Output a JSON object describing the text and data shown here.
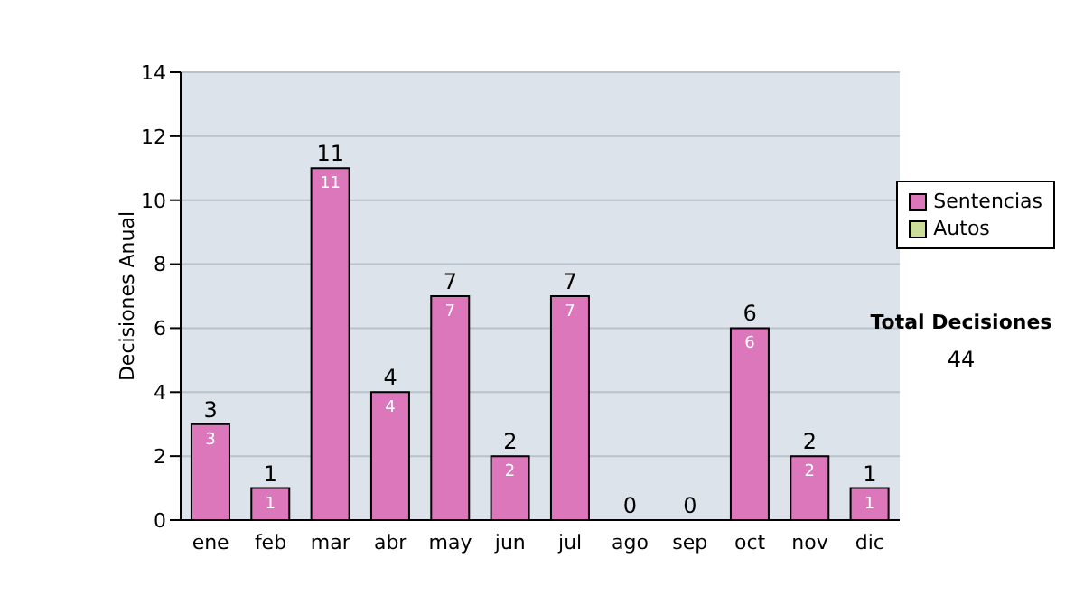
{
  "chart_data": {
    "type": "bar",
    "ylabel": "Decisiones Anual",
    "categories": [
      "ene",
      "feb",
      "mar",
      "abr",
      "may",
      "jun",
      "jul",
      "ago",
      "sep",
      "oct",
      "nov",
      "dic"
    ],
    "series": [
      {
        "name": "Sentencias",
        "color": "#dd77bb",
        "values": [
          3,
          1,
          11,
          4,
          7,
          2,
          7,
          0,
          0,
          6,
          2,
          1
        ],
        "value_labels": [
          "3",
          "1",
          "11",
          "4",
          "7",
          "2",
          "7",
          null,
          null,
          "6",
          "2",
          "1"
        ]
      },
      {
        "name": "Autos",
        "color": "#ccdd99",
        "values": [
          0,
          0,
          0,
          0,
          0,
          0,
          0,
          0,
          0,
          0,
          0,
          0
        ]
      }
    ],
    "stacked": true,
    "totals": [
      "3",
      "1",
      "11",
      "4",
      "7",
      "2",
      "7",
      "0",
      "0",
      "6",
      "2",
      "1"
    ],
    "ylim": [
      0,
      14
    ],
    "yticks": [
      0,
      2,
      4,
      6,
      8,
      10,
      12,
      14
    ],
    "grid": "y",
    "legend": "right",
    "annotations": [
      "Total Decisiones",
      "44"
    ]
  }
}
